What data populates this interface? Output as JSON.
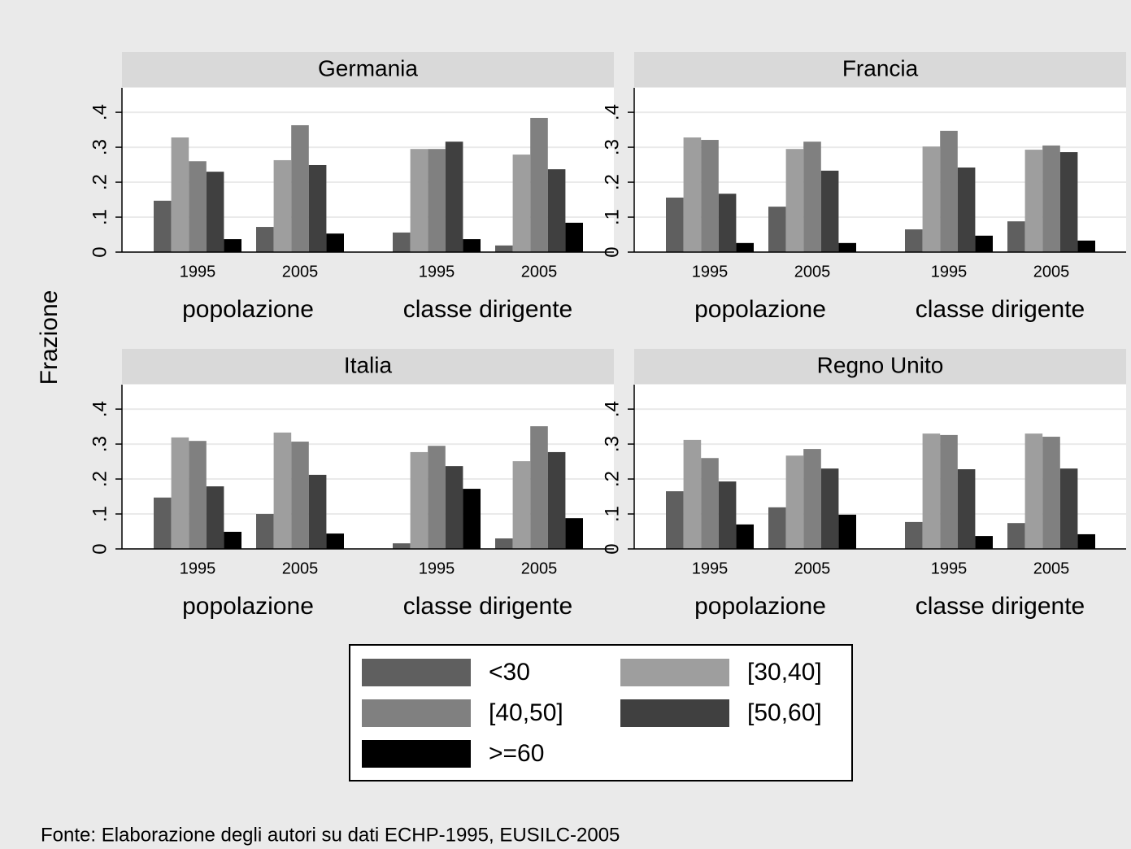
{
  "chart_data": [
    {
      "type": "bar",
      "title": "Germania",
      "categories": [
        "1995",
        "2005",
        "1995",
        "2005"
      ],
      "groups": [
        "popolazione",
        "classe dirigente"
      ],
      "series": [
        {
          "name": "<30",
          "color": "#5f5f5f",
          "values": [
            0.147,
            0.072,
            0.056,
            0.019
          ]
        },
        {
          "name": "[30,40]",
          "color": "#9e9e9e",
          "values": [
            0.328,
            0.263,
            0.295,
            0.279
          ]
        },
        {
          "name": "[40,50]",
          "color": "#808080",
          "values": [
            0.26,
            0.363,
            0.295,
            0.384
          ]
        },
        {
          "name": "[50,60]",
          "color": "#404040",
          "values": [
            0.23,
            0.249,
            0.316,
            0.237
          ]
        },
        {
          "name": ">=60",
          "color": "#000000",
          "values": [
            0.037,
            0.053,
            0.037,
            0.084
          ]
        }
      ],
      "ylim": [
        0,
        0.47
      ],
      "yticks": [
        0,
        {
          "value": 0.1,
          "label": ".1"
        },
        {
          "value": 0.2,
          "label": ".2"
        },
        {
          "value": 0.3,
          "label": ".3"
        },
        {
          "value": 0.4,
          "label": ".4"
        }
      ],
      "grid": true
    },
    {
      "type": "bar",
      "title": "Francia",
      "categories": [
        "1995",
        "2005",
        "1995",
        "2005"
      ],
      "groups": [
        "popolazione",
        "classe dirigente"
      ],
      "series": [
        {
          "name": "<30",
          "color": "#5f5f5f",
          "values": [
            0.156,
            0.13,
            0.065,
            0.088
          ]
        },
        {
          "name": "[30,40]",
          "color": "#9e9e9e",
          "values": [
            0.328,
            0.295,
            0.302,
            0.293
          ]
        },
        {
          "name": "[40,50]",
          "color": "#808080",
          "values": [
            0.321,
            0.316,
            0.347,
            0.305
          ]
        },
        {
          "name": "[50,60]",
          "color": "#404040",
          "values": [
            0.167,
            0.233,
            0.242,
            0.286
          ]
        },
        {
          "name": ">=60",
          "color": "#000000",
          "values": [
            0.026,
            0.026,
            0.047,
            0.033
          ]
        }
      ],
      "ylim": [
        0,
        0.47
      ],
      "yticks": [
        0,
        {
          "value": 0.1,
          "label": ".1"
        },
        {
          "value": 0.2,
          "label": ".2"
        },
        {
          "value": 0.3,
          "label": ".3"
        },
        {
          "value": 0.4,
          "label": ".4"
        }
      ],
      "grid": true
    },
    {
      "type": "bar",
      "title": "Italia",
      "categories": [
        "1995",
        "2005",
        "1995",
        "2005"
      ],
      "groups": [
        "popolazione",
        "classe dirigente"
      ],
      "series": [
        {
          "name": "<30",
          "color": "#5f5f5f",
          "values": [
            0.147,
            0.1,
            0.016,
            0.03
          ]
        },
        {
          "name": "[30,40]",
          "color": "#9e9e9e",
          "values": [
            0.319,
            0.333,
            0.277,
            0.251
          ]
        },
        {
          "name": "[40,50]",
          "color": "#808080",
          "values": [
            0.309,
            0.307,
            0.295,
            0.351
          ]
        },
        {
          "name": "[50,60]",
          "color": "#404040",
          "values": [
            0.179,
            0.212,
            0.237,
            0.277
          ]
        },
        {
          "name": ">=60",
          "color": "#000000",
          "values": [
            0.049,
            0.044,
            0.172,
            0.088
          ]
        }
      ],
      "ylim": [
        0,
        0.47
      ],
      "yticks": [
        0,
        {
          "value": 0.1,
          "label": ".1"
        },
        {
          "value": 0.2,
          "label": ".2"
        },
        {
          "value": 0.3,
          "label": ".3"
        },
        {
          "value": 0.4,
          "label": ".4"
        }
      ],
      "grid": true
    },
    {
      "type": "bar",
      "title": "Regno Unito",
      "categories": [
        "1995",
        "2005",
        "1995",
        "2005"
      ],
      "groups": [
        "popolazione",
        "classe dirigente"
      ],
      "series": [
        {
          "name": "<30",
          "color": "#5f5f5f",
          "values": [
            0.165,
            0.119,
            0.077,
            0.074
          ]
        },
        {
          "name": "[30,40]",
          "color": "#9e9e9e",
          "values": [
            0.312,
            0.267,
            0.33,
            0.33
          ]
        },
        {
          "name": "[40,50]",
          "color": "#808080",
          "values": [
            0.26,
            0.286,
            0.326,
            0.321
          ]
        },
        {
          "name": "[50,60]",
          "color": "#404040",
          "values": [
            0.193,
            0.23,
            0.228,
            0.23
          ]
        },
        {
          "name": ">=60",
          "color": "#000000",
          "values": [
            0.07,
            0.098,
            0.037,
            0.042
          ]
        }
      ],
      "ylim": [
        0,
        0.47
      ],
      "yticks": [
        0,
        {
          "value": 0.1,
          "label": ".1"
        },
        {
          "value": 0.2,
          "label": ".2"
        },
        {
          "value": 0.3,
          "label": ".3"
        },
        {
          "value": 0.4,
          "label": ".4"
        }
      ],
      "grid": true
    }
  ],
  "y_label": "Frazione",
  "note": "Fonte: Elaborazione degli autori su dati ECHP-1995, EUSILC-2005"
}
